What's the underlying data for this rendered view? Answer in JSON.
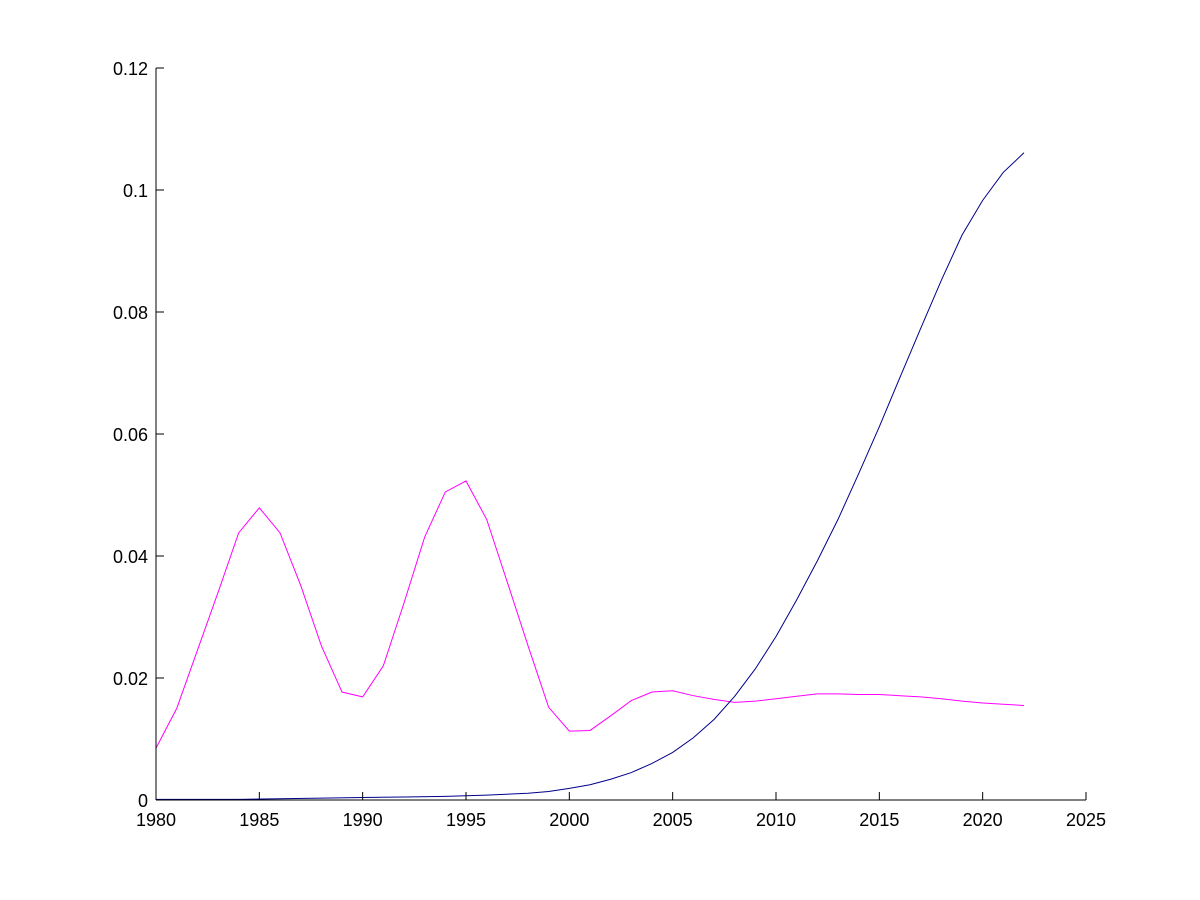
{
  "chart_data": {
    "type": "line",
    "title": "",
    "xlabel": "",
    "ylabel": "",
    "xlim": [
      1980,
      2025
    ],
    "ylim": [
      0,
      0.12
    ],
    "x_ticks": [
      1980,
      1985,
      1990,
      1995,
      2000,
      2005,
      2010,
      2015,
      2020,
      2025
    ],
    "y_ticks": [
      0,
      0.02,
      0.04,
      0.06,
      0.08,
      0.1,
      0.12
    ],
    "x_tick_labels": [
      "1980",
      "1985",
      "1990",
      "1995",
      "2000",
      "2005",
      "2010",
      "2015",
      "2020",
      "2025"
    ],
    "y_tick_labels": [
      "0",
      "0.02",
      "0.04",
      "0.06",
      "0.08",
      "0.1",
      "0.12"
    ],
    "grid": false,
    "legend": "none",
    "series": [
      {
        "color": "#ff00ff",
        "x": [
          1980,
          1981,
          1982,
          1983,
          1984,
          1985,
          1986,
          1987,
          1988,
          1989,
          1990,
          1991,
          1992,
          1993,
          1994,
          1995,
          1996,
          1997,
          1998,
          1999,
          2000,
          2001,
          2002,
          2003,
          2004,
          2005,
          2006,
          2007,
          2008,
          2009,
          2010,
          2011,
          2012,
          2013,
          2014,
          2015,
          2016,
          2017,
          2018,
          2019,
          2020,
          2021,
          2022
        ],
        "y": [
          0.0085,
          0.015,
          0.0245,
          0.034,
          0.0438,
          0.0479,
          0.0438,
          0.0352,
          0.0253,
          0.0177,
          0.0169,
          0.022,
          0.0323,
          0.0431,
          0.0505,
          0.0523,
          0.046,
          0.0357,
          0.0253,
          0.0152,
          0.0113,
          0.0114,
          0.0138,
          0.0163,
          0.0177,
          0.0179,
          0.0171,
          0.0165,
          0.016,
          0.0162,
          0.0166,
          0.017,
          0.0174,
          0.0174,
          0.0173,
          0.0173,
          0.0171,
          0.0169,
          0.0166,
          0.0162,
          0.0159,
          0.0157,
          0.0155
        ]
      },
      {
        "color": "#00008b",
        "x": [
          1980,
          1982,
          1984,
          1986,
          1988,
          1990,
          1992,
          1994,
          1996,
          1998,
          1999,
          2000,
          2001,
          2002,
          2003,
          2004,
          2005,
          2006,
          2007,
          2008,
          2009,
          2010,
          2011,
          2012,
          2013,
          2014,
          2015,
          2016,
          2017,
          2018,
          2019,
          2020,
          2021,
          2022
        ],
        "y": [
          0.0001,
          0.0001,
          0.0001,
          0.0002,
          0.0003,
          0.0004,
          0.0005,
          0.0006,
          0.0008,
          0.0011,
          0.0014,
          0.0019,
          0.0025,
          0.0034,
          0.0045,
          0.006,
          0.0078,
          0.0102,
          0.0132,
          0.017,
          0.0215,
          0.0268,
          0.0328,
          0.0392,
          0.046,
          0.0535,
          0.0612,
          0.0693,
          0.0773,
          0.0852,
          0.0926,
          0.0983,
          0.1029,
          0.1061
        ]
      }
    ]
  }
}
